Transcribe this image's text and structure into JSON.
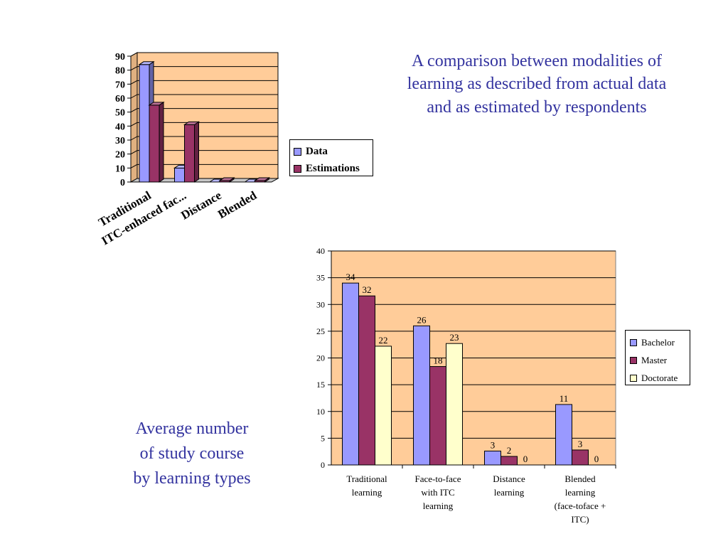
{
  "title_right": "A comparison between modalities of learning as described from actual data and as estimated by respondents",
  "caption_left": [
    "Average number",
    "of study course",
    "by learning types"
  ],
  "colors": {
    "plot_bg": "#ffcc99",
    "series_blue": "#9999ff",
    "series_maroon": "#993366",
    "series_cream": "#ffffcc",
    "caption_text": "#33339f"
  },
  "chart_data": [
    {
      "type": "bar",
      "style": "3d-clustered",
      "categories": [
        "Traditional",
        "ITC-enhaced fac...",
        "Distance",
        "Blended"
      ],
      "series": [
        {
          "name": "Data",
          "color": "#9999ff",
          "values": [
            84,
            10,
            0,
            0
          ]
        },
        {
          "name": "Estimations",
          "color": "#993366",
          "values": [
            55,
            41,
            1,
            1
          ]
        }
      ],
      "yticks": [
        "0",
        "10",
        "20",
        "30",
        "40",
        "50",
        "60",
        "70",
        "80",
        "90"
      ],
      "ylim": [
        0,
        90
      ],
      "grid": true,
      "legend": "right"
    },
    {
      "type": "bar",
      "categories": [
        "Traditional learning",
        "Face-to-face with ITC learning",
        "Distance learning",
        "Blended learning (face-toface + ITC)"
      ],
      "category_lines": [
        [
          "Traditional",
          "learning"
        ],
        [
          "Face-to-face",
          "with ITC",
          "learning"
        ],
        [
          "Distance",
          "learning"
        ],
        [
          "Blended",
          "learning",
          "(face-toface +",
          "ITC)"
        ]
      ],
      "series": [
        {
          "name": "Bachelor",
          "color": "#9999ff",
          "values": [
            34,
            26,
            2.6,
            11.3
          ],
          "labels": [
            "34",
            "26",
            "3",
            "11"
          ]
        },
        {
          "name": "Master",
          "color": "#993366",
          "values": [
            31.6,
            18.4,
            1.6,
            2.8
          ],
          "labels": [
            "32",
            "18",
            "2",
            "3"
          ]
        },
        {
          "name": "Doctorate",
          "color": "#ffffcc",
          "values": [
            22.2,
            22.7,
            0,
            0
          ],
          "labels": [
            "22",
            "23",
            "0",
            "0"
          ]
        }
      ],
      "yticks": [
        "0",
        "5",
        "10",
        "15",
        "20",
        "25",
        "30",
        "35",
        "40"
      ],
      "ylim": [
        0,
        40
      ],
      "grid": true,
      "legend": "right"
    }
  ]
}
